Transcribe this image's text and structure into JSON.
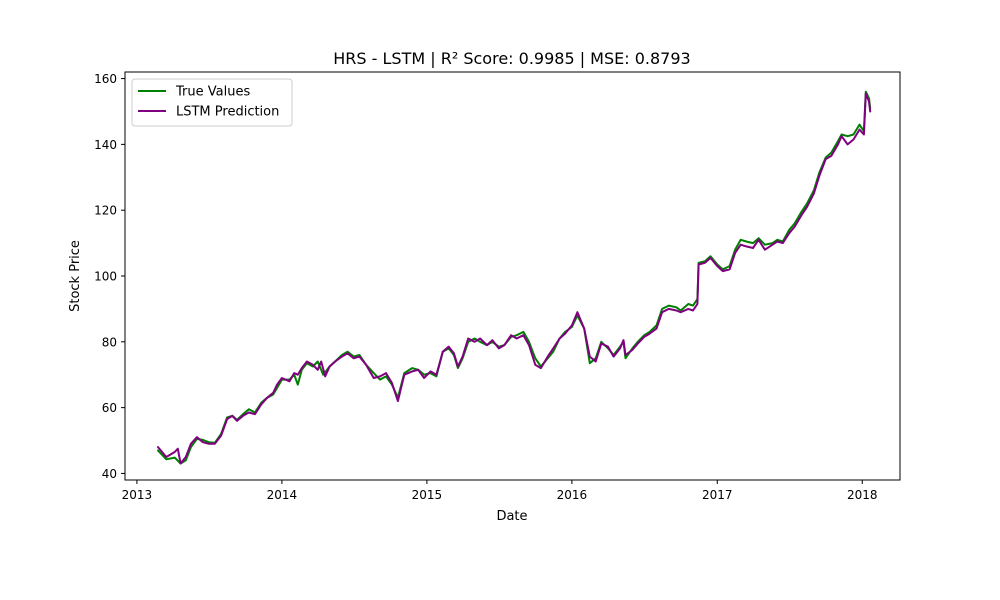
{
  "chart_data": {
    "type": "line",
    "title": "HRS - LSTM | R² Score: 0.9985 | MSE: 0.8793",
    "xlabel": "Date",
    "ylabel": "Stock Price",
    "xlim": [
      "2012-12-02",
      "2018-04-06"
    ],
    "ylim": [
      38,
      162
    ],
    "x_ticks": [
      "2013-01-01",
      "2014-01-01",
      "2015-01-01",
      "2016-01-01",
      "2017-01-01",
      "2018-01-01"
    ],
    "x_tick_labels": [
      "2013",
      "2014",
      "2015",
      "2016",
      "2017",
      "2018"
    ],
    "y_ticks": [
      40,
      60,
      80,
      100,
      120,
      140,
      160
    ],
    "y_tick_labels": [
      "40",
      "60",
      "80",
      "100",
      "120",
      "140",
      "160"
    ],
    "grid": false,
    "legend": {
      "placement": "upper-left"
    },
    "series": [
      {
        "name": "True Values",
        "color": "#008000",
        "points": [
          [
            "2013-02-23",
            47.0
          ],
          [
            "2013-03-16",
            44.3
          ],
          [
            "2013-04-06",
            44.8
          ],
          [
            "2013-04-21",
            43.0
          ],
          [
            "2013-05-04",
            44.0
          ],
          [
            "2013-05-17",
            48.0
          ],
          [
            "2013-06-01",
            50.5
          ],
          [
            "2013-06-16",
            50.2
          ],
          [
            "2013-07-01",
            49.5
          ],
          [
            "2013-07-16",
            49.3
          ],
          [
            "2013-08-01",
            52.0
          ],
          [
            "2013-08-16",
            57.0
          ],
          [
            "2013-08-29",
            57.5
          ],
          [
            "2013-09-10",
            56.3
          ],
          [
            "2013-09-25",
            58.0
          ],
          [
            "2013-10-10",
            59.5
          ],
          [
            "2013-10-25",
            58.5
          ],
          [
            "2013-11-10",
            61.5
          ],
          [
            "2013-11-25",
            63.0
          ],
          [
            "2013-12-10",
            64.0
          ],
          [
            "2013-12-20",
            66.0
          ],
          [
            "2014-01-01",
            68.5
          ],
          [
            "2014-01-20",
            68.5
          ],
          [
            "2014-02-01",
            70.0
          ],
          [
            "2014-02-10",
            67.0
          ],
          [
            "2014-02-20",
            71.5
          ],
          [
            "2014-03-05",
            73.5
          ],
          [
            "2014-03-20",
            72.5
          ],
          [
            "2014-04-01",
            74.0
          ],
          [
            "2014-04-15",
            70.0
          ],
          [
            "2014-05-01",
            72.5
          ],
          [
            "2014-05-15",
            74.0
          ],
          [
            "2014-06-01",
            76.0
          ],
          [
            "2014-06-15",
            77.0
          ],
          [
            "2014-07-01",
            75.5
          ],
          [
            "2014-07-15",
            76.0
          ],
          [
            "2014-08-01",
            73.0
          ],
          [
            "2014-08-20",
            70.5
          ],
          [
            "2014-09-05",
            68.5
          ],
          [
            "2014-09-20",
            69.5
          ],
          [
            "2014-10-05",
            67.0
          ],
          [
            "2014-10-20",
            63.0
          ],
          [
            "2014-11-05",
            70.5
          ],
          [
            "2014-11-25",
            72.0
          ],
          [
            "2014-12-10",
            71.5
          ],
          [
            "2014-12-25",
            70.0
          ],
          [
            "2015-01-10",
            70.5
          ],
          [
            "2015-01-25",
            69.5
          ],
          [
            "2015-02-10",
            77.0
          ],
          [
            "2015-02-25",
            78.0
          ],
          [
            "2015-03-10",
            76.0
          ],
          [
            "2015-03-20",
            72.0
          ],
          [
            "2015-04-01",
            75.0
          ],
          [
            "2015-04-15",
            80.0
          ],
          [
            "2015-05-01",
            81.0
          ],
          [
            "2015-05-15",
            80.0
          ],
          [
            "2015-06-01",
            79.0
          ],
          [
            "2015-06-15",
            80.0
          ],
          [
            "2015-07-01",
            78.5
          ],
          [
            "2015-07-15",
            79.0
          ],
          [
            "2015-08-01",
            81.5
          ],
          [
            "2015-08-15",
            82.0
          ],
          [
            "2015-09-01",
            83.0
          ],
          [
            "2015-09-15",
            80.0
          ],
          [
            "2015-10-01",
            75.0
          ],
          [
            "2015-10-15",
            72.5
          ],
          [
            "2015-11-01",
            75.0
          ],
          [
            "2015-11-15",
            77.0
          ],
          [
            "2015-12-01",
            81.0
          ],
          [
            "2015-12-15",
            83.0
          ],
          [
            "2016-01-01",
            84.5
          ],
          [
            "2016-01-15",
            88.0
          ],
          [
            "2016-02-01",
            84.0
          ],
          [
            "2016-02-15",
            73.5
          ],
          [
            "2016-03-01",
            75.0
          ],
          [
            "2016-03-15",
            80.0
          ],
          [
            "2016-04-01",
            78.0
          ],
          [
            "2016-04-15",
            76.0
          ],
          [
            "2016-05-01",
            78.5
          ],
          [
            "2016-05-10",
            80.0
          ],
          [
            "2016-05-15",
            75.0
          ],
          [
            "2016-06-01",
            78.0
          ],
          [
            "2016-06-15",
            80.0
          ],
          [
            "2016-07-01",
            82.0
          ],
          [
            "2016-07-15",
            83.0
          ],
          [
            "2016-08-01",
            85.0
          ],
          [
            "2016-08-15",
            90.0
          ],
          [
            "2016-09-01",
            91.0
          ],
          [
            "2016-09-20",
            90.5
          ],
          [
            "2016-10-01",
            89.5
          ],
          [
            "2016-10-20",
            91.5
          ],
          [
            "2016-11-01",
            91.0
          ],
          [
            "2016-11-12",
            93.0
          ],
          [
            "2016-11-15",
            104.0
          ],
          [
            "2016-12-01",
            104.5
          ],
          [
            "2016-12-15",
            106.0
          ],
          [
            "2017-01-01",
            103.5
          ],
          [
            "2017-01-15",
            102.0
          ],
          [
            "2017-02-01",
            103.0
          ],
          [
            "2017-02-15",
            108.0
          ],
          [
            "2017-03-01",
            111.0
          ],
          [
            "2017-03-15",
            110.5
          ],
          [
            "2017-04-01",
            110.0
          ],
          [
            "2017-04-15",
            111.5
          ],
          [
            "2017-05-01",
            109.5
          ],
          [
            "2017-05-20",
            110.0
          ],
          [
            "2017-06-01",
            111.0
          ],
          [
            "2017-06-15",
            110.5
          ],
          [
            "2017-07-01",
            114.0
          ],
          [
            "2017-07-15",
            116.0
          ],
          [
            "2017-08-01",
            119.5
          ],
          [
            "2017-08-15",
            122.0
          ],
          [
            "2017-09-01",
            126.0
          ],
          [
            "2017-09-15",
            131.5
          ],
          [
            "2017-10-01",
            136.0
          ],
          [
            "2017-10-15",
            137.5
          ],
          [
            "2017-11-01",
            141.0
          ],
          [
            "2017-11-10",
            143.0
          ],
          [
            "2017-11-25",
            142.5
          ],
          [
            "2017-12-10",
            143.0
          ],
          [
            "2017-12-25",
            146.0
          ],
          [
            "2018-01-05",
            144.0
          ],
          [
            "2018-01-10",
            156.0
          ],
          [
            "2018-01-18",
            154.0
          ],
          [
            "2018-01-21",
            151.0
          ]
        ]
      },
      {
        "name": "LSTM Prediction",
        "color": "#800080",
        "points": [
          [
            "2013-02-23",
            48.0
          ],
          [
            "2013-03-16",
            45.0
          ],
          [
            "2013-04-06",
            46.5
          ],
          [
            "2013-04-14",
            47.5
          ],
          [
            "2013-04-21",
            43.0
          ],
          [
            "2013-05-04",
            45.0
          ],
          [
            "2013-05-17",
            49.0
          ],
          [
            "2013-06-01",
            51.0
          ],
          [
            "2013-06-16",
            49.5
          ],
          [
            "2013-07-01",
            49.0
          ],
          [
            "2013-07-16",
            49.0
          ],
          [
            "2013-08-01",
            51.5
          ],
          [
            "2013-08-16",
            56.5
          ],
          [
            "2013-08-29",
            57.5
          ],
          [
            "2013-09-10",
            56.0
          ],
          [
            "2013-09-25",
            57.5
          ],
          [
            "2013-10-10",
            58.5
          ],
          [
            "2013-10-25",
            58.0
          ],
          [
            "2013-11-10",
            61.0
          ],
          [
            "2013-11-25",
            63.0
          ],
          [
            "2013-12-10",
            64.5
          ],
          [
            "2013-12-20",
            67.0
          ],
          [
            "2014-01-01",
            69.0
          ],
          [
            "2014-01-20",
            68.0
          ],
          [
            "2014-02-01",
            70.5
          ],
          [
            "2014-02-10",
            70.0
          ],
          [
            "2014-02-20",
            72.0
          ],
          [
            "2014-03-05",
            74.0
          ],
          [
            "2014-03-20",
            73.0
          ],
          [
            "2014-04-01",
            71.5
          ],
          [
            "2014-04-10",
            74.0
          ],
          [
            "2014-04-20",
            69.5
          ],
          [
            "2014-05-01",
            72.5
          ],
          [
            "2014-05-15",
            74.0
          ],
          [
            "2014-06-01",
            75.5
          ],
          [
            "2014-06-15",
            76.5
          ],
          [
            "2014-07-01",
            75.0
          ],
          [
            "2014-07-15",
            75.5
          ],
          [
            "2014-08-01",
            73.0
          ],
          [
            "2014-08-20",
            69.0
          ],
          [
            "2014-09-05",
            69.5
          ],
          [
            "2014-09-20",
            70.5
          ],
          [
            "2014-10-05",
            67.5
          ],
          [
            "2014-10-20",
            62.0
          ],
          [
            "2014-11-05",
            70.0
          ],
          [
            "2014-11-25",
            71.0
          ],
          [
            "2014-12-10",
            71.5
          ],
          [
            "2014-12-25",
            69.0
          ],
          [
            "2015-01-10",
            71.0
          ],
          [
            "2015-01-25",
            70.0
          ],
          [
            "2015-02-10",
            77.0
          ],
          [
            "2015-02-25",
            78.5
          ],
          [
            "2015-03-10",
            76.5
          ],
          [
            "2015-03-20",
            72.5
          ],
          [
            "2015-04-01",
            75.5
          ],
          [
            "2015-04-15",
            81.0
          ],
          [
            "2015-05-01",
            80.0
          ],
          [
            "2015-05-15",
            81.0
          ],
          [
            "2015-06-01",
            79.0
          ],
          [
            "2015-06-15",
            80.5
          ],
          [
            "2015-07-01",
            78.0
          ],
          [
            "2015-07-15",
            79.0
          ],
          [
            "2015-08-01",
            82.0
          ],
          [
            "2015-08-15",
            81.0
          ],
          [
            "2015-09-01",
            82.0
          ],
          [
            "2015-09-15",
            79.0
          ],
          [
            "2015-10-01",
            73.0
          ],
          [
            "2015-10-15",
            72.0
          ],
          [
            "2015-11-01",
            75.5
          ],
          [
            "2015-11-15",
            78.0
          ],
          [
            "2015-12-01",
            81.0
          ],
          [
            "2015-12-15",
            82.5
          ],
          [
            "2016-01-01",
            85.0
          ],
          [
            "2016-01-15",
            89.0
          ],
          [
            "2016-02-01",
            84.0
          ],
          [
            "2016-02-15",
            75.5
          ],
          [
            "2016-03-01",
            74.0
          ],
          [
            "2016-03-15",
            79.5
          ],
          [
            "2016-04-01",
            78.5
          ],
          [
            "2016-04-15",
            75.5
          ],
          [
            "2016-05-01",
            78.0
          ],
          [
            "2016-05-10",
            80.5
          ],
          [
            "2016-05-15",
            76.0
          ],
          [
            "2016-06-01",
            77.5
          ],
          [
            "2016-06-15",
            79.5
          ],
          [
            "2016-07-01",
            81.5
          ],
          [
            "2016-07-15",
            82.5
          ],
          [
            "2016-08-01",
            84.0
          ],
          [
            "2016-08-15",
            89.0
          ],
          [
            "2016-09-01",
            90.0
          ],
          [
            "2016-09-20",
            89.5
          ],
          [
            "2016-10-01",
            89.0
          ],
          [
            "2016-10-20",
            90.0
          ],
          [
            "2016-11-01",
            89.5
          ],
          [
            "2016-11-12",
            91.5
          ],
          [
            "2016-11-15",
            103.5
          ],
          [
            "2016-12-01",
            104.0
          ],
          [
            "2016-12-15",
            105.5
          ],
          [
            "2017-01-01",
            103.0
          ],
          [
            "2017-01-15",
            101.5
          ],
          [
            "2017-02-01",
            102.0
          ],
          [
            "2017-02-15",
            107.0
          ],
          [
            "2017-03-01",
            109.5
          ],
          [
            "2017-03-15",
            109.0
          ],
          [
            "2017-04-01",
            108.5
          ],
          [
            "2017-04-15",
            111.0
          ],
          [
            "2017-05-01",
            108.0
          ],
          [
            "2017-05-20",
            109.5
          ],
          [
            "2017-06-01",
            110.5
          ],
          [
            "2017-06-15",
            110.0
          ],
          [
            "2017-07-01",
            113.0
          ],
          [
            "2017-07-15",
            115.0
          ],
          [
            "2017-08-01",
            118.5
          ],
          [
            "2017-08-15",
            121.0
          ],
          [
            "2017-09-01",
            125.0
          ],
          [
            "2017-09-15",
            130.5
          ],
          [
            "2017-10-01",
            135.5
          ],
          [
            "2017-10-15",
            136.5
          ],
          [
            "2017-11-01",
            140.0
          ],
          [
            "2017-11-10",
            142.5
          ],
          [
            "2017-11-25",
            140.0
          ],
          [
            "2017-12-10",
            141.5
          ],
          [
            "2017-12-25",
            144.5
          ],
          [
            "2018-01-05",
            143.0
          ],
          [
            "2018-01-10",
            155.5
          ],
          [
            "2018-01-18",
            153.0
          ],
          [
            "2018-01-21",
            150.0
          ]
        ]
      }
    ]
  }
}
